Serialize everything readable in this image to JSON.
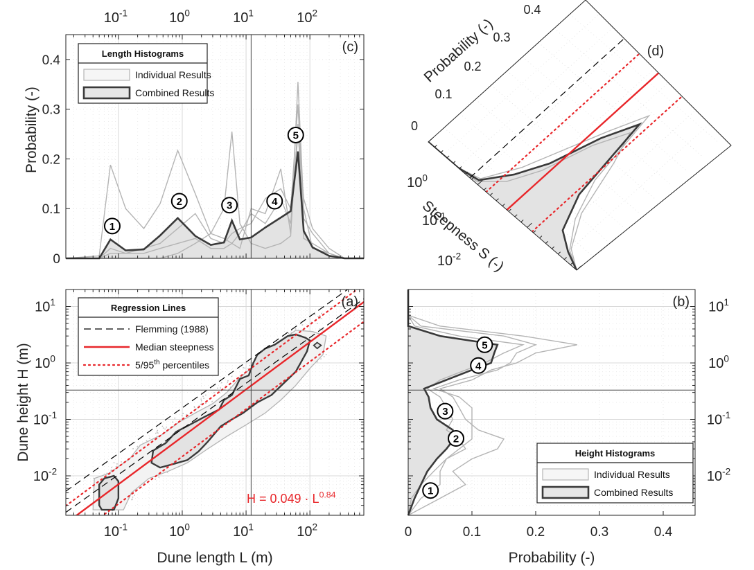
{
  "colors": {
    "individual": "#b4b4b4",
    "combined": "#3a3a3a",
    "fill": "#e3e3e3",
    "median": "#e8262a",
    "percentile": "#e8262a",
    "flemming": "#000000"
  },
  "chart_data": [
    {
      "panel": "c",
      "type": "line",
      "label": "(c)",
      "xscale": "log",
      "xlim": [
        0.015,
        700
      ],
      "ylim": [
        0,
        0.45
      ],
      "ylabel": "Probability (-)",
      "x_ticks": [
        0.1,
        1,
        10,
        100
      ],
      "x_tick_labels": [
        {
          "base": "10",
          "exp": "-1"
        },
        {
          "base": "10",
          "exp": "0"
        },
        {
          "base": "10",
          "exp": "1"
        },
        {
          "base": "10",
          "exp": "2"
        }
      ],
      "y_ticks": [
        0,
        0.1,
        0.2,
        0.3,
        0.4
      ],
      "y_tick_labels": [
        "0",
        "0.1",
        "0.2",
        "0.3",
        "0.4"
      ],
      "vline": 12,
      "legend": {
        "title": "Length Histograms",
        "entries": [
          "Individual Results",
          "Combined Results"
        ],
        "position": "top-left"
      },
      "x": [
        0.015,
        0.05,
        0.075,
        0.13,
        0.25,
        0.45,
        0.85,
        1.6,
        2.8,
        4.5,
        6,
        8,
        12,
        20,
        35,
        50,
        65,
        80,
        110,
        200,
        350,
        700
      ],
      "series": [
        {
          "role": "combined",
          "values": [
            0,
            0,
            0.038,
            0.016,
            0.018,
            0.046,
            0.081,
            0.045,
            0.027,
            0.032,
            0.076,
            0.038,
            0.042,
            0.062,
            0.082,
            0.095,
            0.215,
            0.055,
            0.022,
            0.005,
            0,
            0
          ]
        },
        {
          "role": "individual",
          "values": [
            0,
            0.005,
            0.188,
            0.1,
            0.06,
            0.11,
            0.217,
            0.13,
            0.05,
            0.1,
            0.255,
            0.07,
            0.03,
            0.02,
            0.03,
            0.045,
            0.355,
            0.1,
            0.02,
            0.01,
            0,
            0
          ]
        },
        {
          "role": "individual",
          "values": [
            0,
            0,
            0.02,
            0.01,
            0.02,
            0.03,
            0.06,
            0.09,
            0.04,
            0.03,
            0.05,
            0.06,
            0.07,
            0.12,
            0.14,
            0.1,
            0.31,
            0.08,
            0.05,
            0.01,
            0,
            0
          ]
        },
        {
          "role": "individual",
          "values": [
            0,
            0,
            0,
            0,
            0,
            0,
            0.01,
            0.03,
            0.05,
            0.04,
            0.03,
            0.02,
            0.1,
            0.09,
            0.18,
            0.05,
            0.27,
            0.04,
            0.03,
            0.01,
            0,
            0
          ]
        },
        {
          "role": "individual",
          "values": [
            0,
            0,
            0.01,
            0.01,
            0.01,
            0.02,
            0.03,
            0.04,
            0.02,
            0.02,
            0.03,
            0.05,
            0.09,
            0.07,
            0.12,
            0.07,
            0.25,
            0.12,
            0.06,
            0.02,
            0,
            0
          ]
        }
      ],
      "markers": [
        {
          "id": "1",
          "x": 0.08,
          "y": 0.065
        },
        {
          "id": "2",
          "x": 0.9,
          "y": 0.115
        },
        {
          "id": "3",
          "x": 5.5,
          "y": 0.107
        },
        {
          "id": "4",
          "x": 28,
          "y": 0.115
        },
        {
          "id": "5",
          "x": 60,
          "y": 0.248
        }
      ]
    },
    {
      "panel": "d",
      "type": "line",
      "label": "(d)",
      "xlabel": "Steepness S (-)",
      "ylabel": "Probability (-)",
      "x_tick_labels": [
        {
          "base": "10",
          "exp": "0"
        },
        {
          "base": "10",
          "exp": "-1"
        },
        {
          "base": "10",
          "exp": "-2"
        }
      ],
      "y_tick_labels": [
        "0",
        "0.1",
        "0.2",
        "0.3",
        "0.4"
      ],
      "note": "rotated view of the steepness histogram"
    },
    {
      "panel": "a",
      "type": "scatter",
      "label": "(a)",
      "xscale": "log",
      "yscale": "log",
      "xlim": [
        0.015,
        700
      ],
      "ylim": [
        0.002,
        20
      ],
      "xlabel": "Dune length L (m)",
      "ylabel": "Dune height H (m)",
      "x_ticks": [
        0.1,
        1,
        10,
        100
      ],
      "x_tick_labels": [
        {
          "base": "10",
          "exp": "-1"
        },
        {
          "base": "10",
          "exp": "0"
        },
        {
          "base": "10",
          "exp": "1"
        },
        {
          "base": "10",
          "exp": "2"
        }
      ],
      "y_ticks": [
        0.01,
        0.1,
        1,
        10
      ],
      "y_tick_labels": [
        {
          "base": "10",
          "exp": "-2"
        },
        {
          "base": "10",
          "exp": "-1"
        },
        {
          "base": "10",
          "exp": "0"
        },
        {
          "base": "10",
          "exp": "1"
        }
      ],
      "vline": 12,
      "hline": 0.33,
      "legend": {
        "title": "Regression Lines",
        "entries": [
          {
            "text": "Flemming (1988)",
            "sup": ""
          },
          {
            "text": "Median steepness",
            "sup": ""
          },
          {
            "text": "5/95",
            "sup": "th",
            "tail": " percentiles"
          }
        ],
        "position": "top-left"
      },
      "equation": {
        "text": "H = 0.049 · L",
        "sup": "0.84"
      },
      "lines": [
        {
          "role": "median",
          "a": 0.049,
          "b": 0.84
        },
        {
          "role": "percentile",
          "a": 0.1,
          "b": 0.84
        },
        {
          "role": "percentile",
          "a": 0.022,
          "b": 0.84
        },
        {
          "role": "flemming",
          "a": 0.0677,
          "b": 0.8098
        },
        {
          "role": "flemming",
          "a": 0.16,
          "b": 0.8098
        }
      ],
      "contours": [
        {
          "role": "combined",
          "points": [
            [
              0.05,
              0.003
            ],
            [
              0.05,
              0.007
            ],
            [
              0.06,
              0.009
            ],
            [
              0.085,
              0.01
            ],
            [
              0.1,
              0.008
            ],
            [
              0.1,
              0.004
            ],
            [
              0.085,
              0.0025
            ],
            [
              0.055,
              0.0025
            ]
          ]
        },
        {
          "role": "combined",
          "points": [
            [
              0.33,
              0.017
            ],
            [
              0.35,
              0.028
            ],
            [
              0.55,
              0.038
            ],
            [
              0.8,
              0.06
            ],
            [
              1.3,
              0.08
            ],
            [
              2.2,
              0.11
            ],
            [
              3.8,
              0.15
            ],
            [
              4.5,
              0.22
            ],
            [
              6,
              0.27
            ],
            [
              8,
              0.52
            ],
            [
              11,
              0.6
            ],
            [
              13,
              1
            ],
            [
              15,
              1.4
            ],
            [
              20,
              1.8
            ],
            [
              28,
              2.1
            ],
            [
              45,
              3
            ],
            [
              60,
              3.2
            ],
            [
              85,
              2.8
            ],
            [
              100,
              2.5
            ],
            [
              90,
              1.6
            ],
            [
              60,
              0.7
            ],
            [
              40,
              0.45
            ],
            [
              25,
              0.27
            ],
            [
              15,
              0.2
            ],
            [
              9,
              0.13
            ],
            [
              6,
              0.1
            ],
            [
              4,
              0.075
            ],
            [
              2.5,
              0.04
            ],
            [
              1.8,
              0.027
            ],
            [
              1.2,
              0.019
            ],
            [
              0.7,
              0.016
            ],
            [
              0.45,
              0.014
            ]
          ]
        },
        {
          "role": "individual",
          "points": [
            [
              0.04,
              0.0025
            ],
            [
              0.042,
              0.009
            ],
            [
              0.07,
              0.011
            ],
            [
              0.15,
              0.02
            ],
            [
              0.22,
              0.035
            ],
            [
              0.5,
              0.055
            ],
            [
              0.9,
              0.09
            ],
            [
              1.6,
              0.13
            ],
            [
              3,
              0.19
            ],
            [
              5,
              0.3
            ],
            [
              8,
              0.55
            ],
            [
              12,
              0.8
            ],
            [
              20,
              1.6
            ],
            [
              35,
              2.4
            ],
            [
              60,
              3.8
            ],
            [
              110,
              3.6
            ],
            [
              180,
              3
            ],
            [
              160,
              1.4
            ],
            [
              100,
              0.8
            ],
            [
              60,
              0.4
            ],
            [
              35,
              0.22
            ],
            [
              20,
              0.13
            ],
            [
              10,
              0.08
            ],
            [
              5,
              0.05
            ],
            [
              2.5,
              0.03
            ],
            [
              1.2,
              0.017
            ],
            [
              0.6,
              0.012
            ],
            [
              0.3,
              0.009
            ],
            [
              0.16,
              0.005
            ],
            [
              0.12,
              0.0025
            ]
          ]
        }
      ]
    },
    {
      "panel": "b",
      "type": "line",
      "label": "(b)",
      "orientation": "horizontal",
      "yscale": "log",
      "xlim": [
        0,
        0.45
      ],
      "ylim": [
        0.002,
        20
      ],
      "xlabel": "Probability (-)",
      "x_ticks": [
        0,
        0.1,
        0.2,
        0.3,
        0.4
      ],
      "x_tick_labels": [
        "0",
        "0.1",
        "0.2",
        "0.3",
        "0.4"
      ],
      "y_ticks": [
        0.01,
        0.1,
        1,
        10
      ],
      "y_tick_labels": [
        {
          "base": "10",
          "exp": "-2"
        },
        {
          "base": "10",
          "exp": "-1"
        },
        {
          "base": "10",
          "exp": "0"
        },
        {
          "base": "10",
          "exp": "1"
        }
      ],
      "hline": 0.33,
      "legend": {
        "title": "Height Histograms",
        "entries": [
          "Individual Results",
          "Combined Results"
        ],
        "position": "bottom-right"
      },
      "y": [
        0.002,
        0.004,
        0.007,
        0.012,
        0.02,
        0.03,
        0.045,
        0.065,
        0.1,
        0.16,
        0.25,
        0.35,
        0.5,
        0.75,
        1,
        1.5,
        2.1,
        3,
        4.5,
        7,
        20
      ],
      "series": [
        {
          "role": "combined",
          "values": [
            0,
            0.01,
            0.02,
            0.03,
            0.045,
            0.06,
            0.072,
            0.07,
            0.045,
            0.035,
            0.032,
            0.025,
            0.06,
            0.1,
            0.13,
            0.135,
            0.14,
            0.05,
            0,
            0,
            0
          ]
        },
        {
          "role": "individual",
          "values": [
            0,
            0.05,
            0.09,
            0.07,
            0.1,
            0.14,
            0.15,
            0.11,
            0.09,
            0.08,
            0.07,
            0.05,
            0.1,
            0.13,
            0.17,
            0.2,
            0.265,
            0.18,
            0.05,
            0,
            0
          ]
        },
        {
          "role": "individual",
          "values": [
            0,
            0.02,
            0.05,
            0.05,
            0.06,
            0.08,
            0.1,
            0.1,
            0.1,
            0.1,
            0.08,
            0.04,
            0.08,
            0.14,
            0.16,
            0.17,
            0.2,
            0.15,
            0.02,
            0,
            0
          ]
        },
        {
          "role": "individual",
          "values": [
            0,
            0.005,
            0.02,
            0.04,
            0.06,
            0.09,
            0.08,
            0.06,
            0.07,
            0.06,
            0.05,
            0.03,
            0.05,
            0.09,
            0.12,
            0.15,
            0.18,
            0.08,
            0.01,
            0,
            0
          ]
        }
      ],
      "markers": [
        {
          "id": "1",
          "x": 0.035,
          "y": 0.0055
        },
        {
          "id": "2",
          "x": 0.075,
          "y": 0.046
        },
        {
          "id": "3",
          "x": 0.058,
          "y": 0.14
        },
        {
          "id": "4",
          "x": 0.11,
          "y": 0.9
        },
        {
          "id": "5",
          "x": 0.12,
          "y": 2.1
        }
      ]
    }
  ]
}
